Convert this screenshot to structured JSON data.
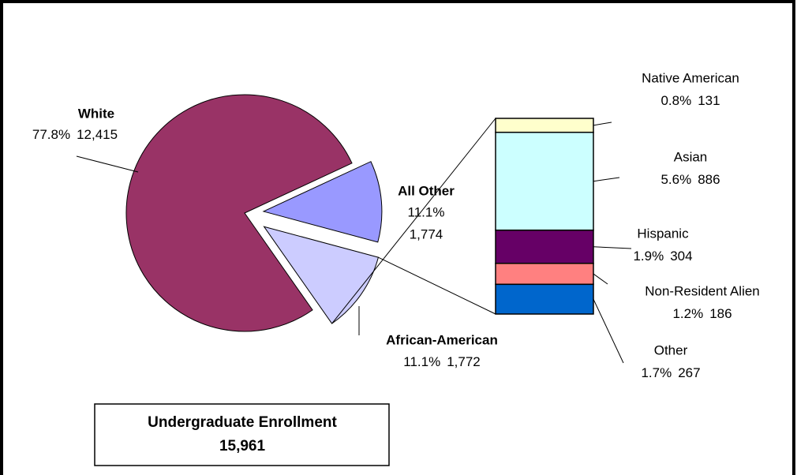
{
  "chart_data": {
    "type": "pie",
    "slices": {
      "names": [
        "White",
        "African-American",
        "All Other"
      ],
      "values": [
        77.8,
        11.1,
        11.1
      ],
      "value_labels": [
        "77.8%",
        "11.1%",
        "11.1%"
      ],
      "counts": [
        12415,
        1772,
        1774
      ],
      "count_labels": [
        "12,415",
        "1,772",
        "1,774"
      ],
      "colors": [
        "#993366",
        "#9999ff",
        "#ccccff"
      ]
    },
    "bar": {
      "names": [
        "Native American",
        "Asian",
        "Hispanic",
        "Non-Resident Alien",
        "Other"
      ],
      "values": [
        0.8,
        5.6,
        1.9,
        1.2,
        1.7
      ],
      "value_labels": [
        "0.8%",
        "5.6%",
        "1.9%",
        "1.2%",
        "1.7%"
      ],
      "counts": [
        131,
        886,
        304,
        186,
        267
      ],
      "count_labels": [
        "131",
        "886",
        "304",
        "186",
        "267"
      ],
      "colors": [
        "#ffffcc",
        "#ccffff",
        "#660066",
        "#ff8080",
        "#0066cc"
      ]
    },
    "total": {
      "title": "Undergraduate Enrollment",
      "value": 15961,
      "label": "15,961"
    }
  }
}
